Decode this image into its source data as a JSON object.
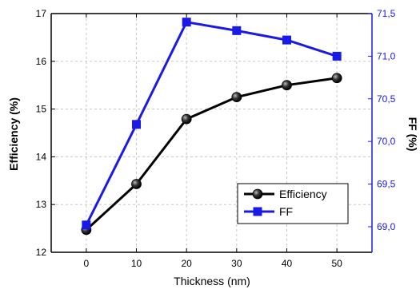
{
  "chart_data": {
    "type": "line",
    "xlabel": "Thickness (nm)",
    "ylabel_left": "Efficiency (%)",
    "ylabel_right": "FF (%)",
    "x": [
      0,
      10,
      20,
      30,
      40,
      50
    ],
    "xticks": [
      "0",
      "10",
      "20",
      "30",
      "40",
      "50"
    ],
    "xlim": [
      -7,
      57
    ],
    "ylim_left": [
      12,
      17
    ],
    "yticks_left": [
      "12",
      "13",
      "14",
      "15",
      "16",
      "17"
    ],
    "ylim_right": [
      68.7,
      71.5
    ],
    "yticks_right": [
      "69,0",
      "69,5",
      "70,0",
      "70,5",
      "71,0",
      "71,5"
    ],
    "grid": true,
    "legend_position": "lower-right",
    "series": [
      {
        "name": "Efficiency",
        "axis": "left",
        "marker": "circle",
        "color": "#000000",
        "values": [
          12.47,
          13.43,
          14.79,
          15.25,
          15.5,
          15.65
        ]
      },
      {
        "name": "FF",
        "axis": "right",
        "marker": "square",
        "color": "#1a1ae6",
        "values": [
          69.02,
          70.2,
          71.4,
          71.3,
          71.19,
          71.0
        ]
      }
    ]
  }
}
